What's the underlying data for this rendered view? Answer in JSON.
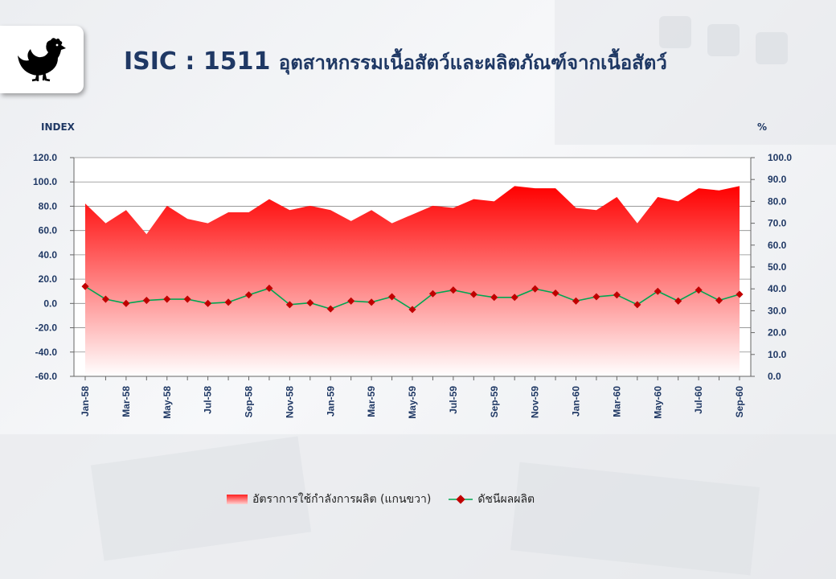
{
  "header": {
    "code": "ISIC : 1511",
    "subtitle": "อุตสาหกรรมเนื้อสัตว์และผลิตภัณฑ์จากเนื้อสัตว์",
    "icon": "chicken-icon"
  },
  "chart_data": {
    "type": "line",
    "ylabel_left": "INDEX",
    "ylabel_right": "%",
    "left_axis": {
      "min": -60,
      "max": 120,
      "step": 20,
      "decimals": 1
    },
    "right_axis": {
      "min": 0,
      "max": 100,
      "step": 10,
      "decimals": 1
    },
    "grid": true,
    "legend_position": "bottom",
    "x": [
      "Jan-58",
      "Feb-58",
      "Mar-58",
      "Apr-58",
      "May-58",
      "Jun-58",
      "Jul-58",
      "Aug-58",
      "Sep-58",
      "Oct-58",
      "Nov-58",
      "Dec-58",
      "Jan-59",
      "Feb-59",
      "Mar-59",
      "Apr-59",
      "May-59",
      "Jun-59",
      "Jul-59",
      "Aug-59",
      "Sep-59",
      "Oct-59",
      "Nov-59",
      "Dec-59",
      "Jan-60",
      "Feb-60",
      "Mar-60",
      "Apr-60",
      "May-60",
      "Jun-60",
      "Jul-60",
      "Aug-60",
      "Sep-60"
    ],
    "x_tick_labels": [
      "Jan-58",
      "",
      "Mar-58",
      "",
      "May-58",
      "",
      "Jul-58",
      "",
      "Sep-58",
      "",
      "Nov-58",
      "",
      "Jan-59",
      "",
      "Mar-59",
      "",
      "May-59",
      "",
      "Jul-59",
      "",
      "Sep-59",
      "",
      "Nov-59",
      "",
      "Jan-60",
      "",
      "Mar-60",
      "",
      "May-60",
      "",
      "Jul-60",
      "",
      "Sep-60"
    ],
    "series": [
      {
        "name": "อัตราการใช้กำลังการผลิต (แกนขวา)",
        "kind": "area",
        "axis": "right",
        "color": "#ff0000",
        "values": [
          79,
          70,
          76,
          65,
          78,
          72,
          70,
          75,
          75,
          81,
          76,
          78,
          76,
          71,
          76,
          70,
          74,
          78,
          77,
          81,
          80,
          87,
          86,
          86,
          77,
          76,
          82,
          70,
          82,
          80,
          86,
          85,
          87
        ]
      },
      {
        "name": "ดัชนีผลผลิต",
        "kind": "line",
        "axis": "left",
        "color": "#00a651",
        "marker_color": "#c00000",
        "values": [
          14.0,
          3.5,
          0.0,
          2.5,
          3.5,
          3.5,
          0.0,
          1.0,
          7.0,
          12.5,
          -1.0,
          0.5,
          -4.5,
          2.0,
          1.0,
          5.5,
          -5.0,
          8.0,
          11.0,
          7.5,
          5.0,
          5.0,
          12.0,
          8.5,
          2.0,
          5.5,
          7.0,
          -1.0,
          10.0,
          2.0,
          11.0,
          2.5,
          7.5
        ]
      }
    ]
  }
}
